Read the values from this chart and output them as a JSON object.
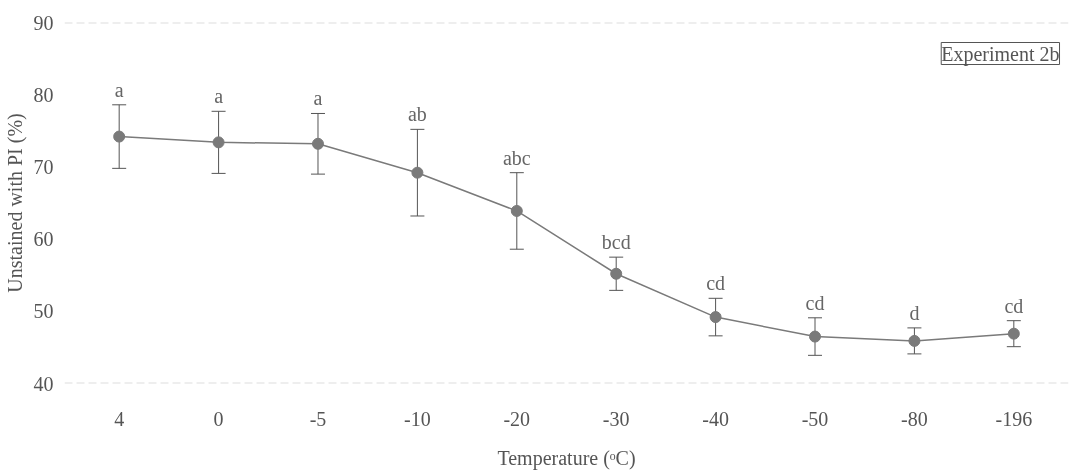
{
  "chart_data": {
    "type": "line",
    "xlabel": "Temperature (ᵒC)",
    "ylabel": "Unstained with PI (%)",
    "categories": [
      "4",
      "0",
      "-5",
      "-10",
      "-20",
      "-30",
      "-40",
      "-50",
      "-80",
      "-196"
    ],
    "series": [
      {
        "color": "#7a7a7a",
        "values": [
          74.2,
          73.4,
          73.2,
          69.2,
          63.9,
          55.2,
          49.2,
          46.5,
          45.9,
          46.9
        ],
        "errors": [
          4.4,
          4.3,
          4.2,
          6.0,
          5.3,
          2.3,
          2.6,
          2.6,
          1.8,
          1.8
        ]
      }
    ],
    "ylim": [
      40,
      90
    ],
    "yticks": [
      40,
      50,
      60,
      70,
      80,
      90
    ],
    "marker": "circle",
    "line_style": "solid",
    "grid": false,
    "annotations": [
      "Experiment 2b",
      {
        "text": "a",
        "x": "4",
        "y": 78.6
      },
      {
        "text": "a",
        "x": "0",
        "y": 77.7
      },
      {
        "text": "a",
        "x": "-5",
        "y": 77.4
      },
      {
        "text": "ab",
        "x": "-10",
        "y": 75.2
      },
      {
        "text": "abc",
        "x": "-20",
        "y": 69.2
      },
      {
        "text": "bcd",
        "x": "-30",
        "y": 57.5
      },
      {
        "text": "cd",
        "x": "-40",
        "y": 51.8
      },
      {
        "text": "cd",
        "x": "-50",
        "y": 49.1
      },
      {
        "text": "d",
        "x": "-80",
        "y": 47.7
      },
      {
        "text": "cd",
        "x": "-196",
        "y": 48.7
      }
    ]
  }
}
